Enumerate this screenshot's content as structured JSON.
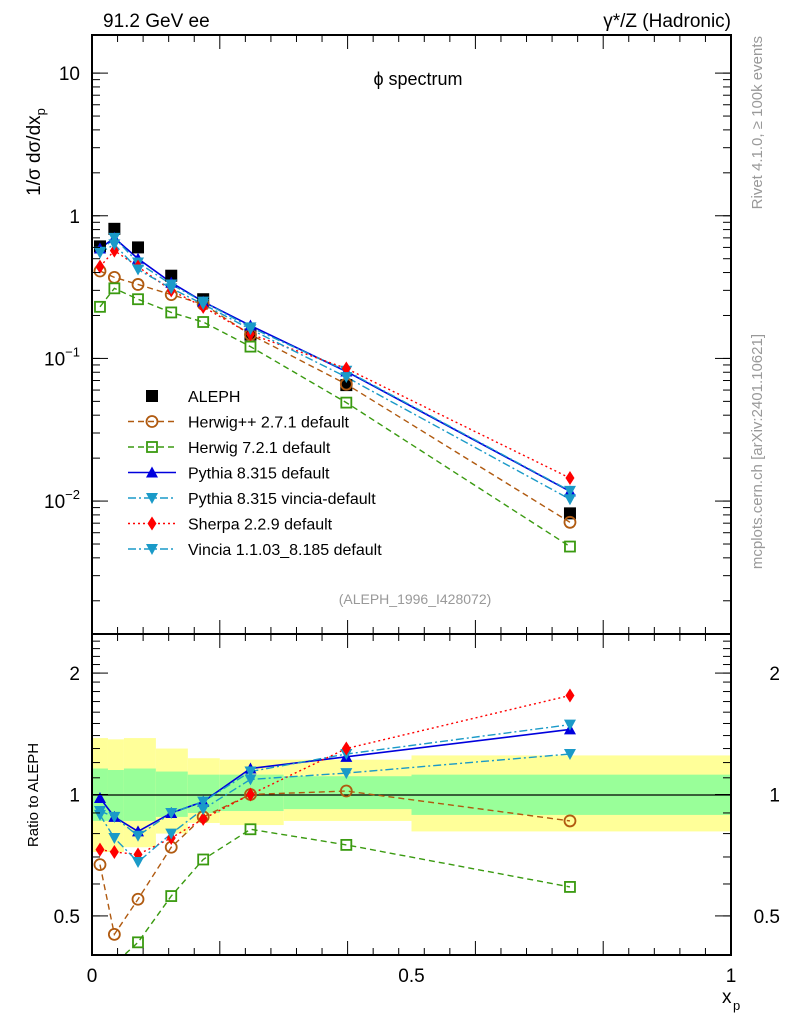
{
  "header": {
    "left": "91.2 GeV ee",
    "right": "γ*/Z (Hadronic)"
  },
  "side_text": {
    "top": "Rivet 4.1.0, ≥ 100k events",
    "bottom": "mcplots.cern.ch [arXiv:2401.10621]"
  },
  "chart_data": [
    {
      "type": "line",
      "panel": "main",
      "title": "ϕ spectrum",
      "annotation": "(ALEPH_1996_I428072)",
      "xlabel": "x_p",
      "ylabel": "1/σ  dσ/dx_p",
      "yscale": "log",
      "xlim": [
        0,
        1
      ],
      "ylim": [
        0.00117,
        18.5
      ],
      "y_ticks": [
        {
          "value": 10,
          "label": "10"
        },
        {
          "value": 1,
          "label": "1"
        },
        {
          "value": 0.1,
          "label": "10^-1"
        },
        {
          "value": 0.01,
          "label": "10^-2"
        }
      ],
      "legend_position": "bottom-left",
      "x": [
        0.0125,
        0.035,
        0.072,
        0.124,
        0.174,
        0.248,
        0.398,
        0.748
      ],
      "series": [
        {
          "name": "ALEPH",
          "color": "#000000",
          "marker": "square-filled",
          "line": "none",
          "values": [
            0.61,
            0.81,
            0.6,
            0.38,
            0.26,
            0.147,
            0.065,
            0.0082
          ]
        },
        {
          "name": "Herwig++ 2.7.1 default",
          "color": "#b05a10",
          "marker": "circle-open",
          "line": "dashed",
          "values": [
            0.41,
            0.37,
            0.33,
            0.28,
            0.24,
            0.147,
            0.066,
            0.0071
          ]
        },
        {
          "name": "Herwig 7.2.1 default",
          "color": "#3a9a10",
          "marker": "square-open",
          "line": "dashed",
          "values": [
            0.23,
            0.31,
            0.26,
            0.21,
            0.18,
            0.121,
            0.049,
            0.0048
          ]
        },
        {
          "name": "Pythia 8.315 default",
          "color": "#0000dd",
          "marker": "triangle-up",
          "line": "solid",
          "values": [
            0.59,
            0.7,
            0.5,
            0.34,
            0.25,
            0.17,
            0.081,
            0.0117
          ]
        },
        {
          "name": "Pythia 8.315 vincia-default",
          "color": "#1a9ac8",
          "marker": "triangle-down",
          "line": "dashdot",
          "values": [
            0.56,
            0.7,
            0.47,
            0.33,
            0.25,
            0.165,
            0.082,
            0.0118
          ]
        },
        {
          "name": "Sherpa 2.2.9 default",
          "color": "#ff0000",
          "marker": "diamond",
          "line": "dotted",
          "values": [
            0.44,
            0.57,
            0.44,
            0.3,
            0.23,
            0.148,
            0.085,
            0.0145
          ]
        },
        {
          "name": "Vincia 1.1.03_8.185 default",
          "color": "#1a9ac8",
          "marker": "triangle-down",
          "line": "dashdot",
          "values": [
            0.55,
            0.63,
            0.42,
            0.31,
            0.24,
            0.16,
            0.074,
            0.0103
          ]
        }
      ]
    },
    {
      "type": "line",
      "panel": "ratio",
      "xlabel": "x_p",
      "ylabel": "Ratio to ALEPH",
      "yscale": "log",
      "xlim": [
        0,
        1
      ],
      "ylim": [
        0.4,
        2.5
      ],
      "x_ticks": [
        {
          "value": 0,
          "label": "0"
        },
        {
          "value": 0.5,
          "label": "0.5"
        },
        {
          "value": 1,
          "label": "1"
        }
      ],
      "y_ticks": [
        {
          "value": 2,
          "label": "2"
        },
        {
          "value": 1,
          "label": "1"
        },
        {
          "value": 0.5,
          "label": "0.5"
        }
      ],
      "bands": {
        "edges": [
          0.0,
          0.025,
          0.05,
          0.1,
          0.15,
          0.2,
          0.3,
          0.5,
          1.0
        ],
        "inner": {
          "color": "#99ff99",
          "lo": [
            0.86,
            0.86,
            0.86,
            0.88,
            0.9,
            0.91,
            0.92,
            0.89
          ],
          "hi": [
            1.16,
            1.15,
            1.16,
            1.14,
            1.12,
            1.12,
            1.11,
            1.12
          ]
        },
        "outer": {
          "color": "#ffff99",
          "lo": [
            0.72,
            0.72,
            0.74,
            0.8,
            0.85,
            0.84,
            0.86,
            0.81
          ],
          "hi": [
            1.38,
            1.37,
            1.38,
            1.3,
            1.23,
            1.22,
            1.22,
            1.25
          ]
        }
      },
      "x": [
        0.0125,
        0.035,
        0.072,
        0.124,
        0.174,
        0.248,
        0.398,
        0.748
      ],
      "series": [
        {
          "name": "Herwig++ 2.7.1 default",
          "values": [
            0.67,
            0.45,
            0.55,
            0.74,
            0.88,
            1.0,
            1.02,
            0.86
          ]
        },
        {
          "name": "Herwig 7.2.1 default",
          "values": [
            0.37,
            0.38,
            0.43,
            0.56,
            0.69,
            0.82,
            0.75,
            0.59
          ]
        },
        {
          "name": "Pythia 8.315 default",
          "values": [
            0.98,
            0.88,
            0.81,
            0.9,
            0.96,
            1.16,
            1.24,
            1.45
          ]
        },
        {
          "name": "Pythia 8.315 vincia-default",
          "values": [
            0.91,
            0.88,
            0.79,
            0.9,
            0.96,
            1.14,
            1.26,
            1.49
          ]
        },
        {
          "name": "Sherpa 2.2.9 default",
          "values": [
            0.73,
            0.72,
            0.71,
            0.78,
            0.87,
            1.0,
            1.3,
            1.76
          ]
        },
        {
          "name": "Vincia 1.1.03_8.185 default",
          "values": [
            0.89,
            0.78,
            0.68,
            0.8,
            0.92,
            1.09,
            1.13,
            1.26
          ]
        }
      ]
    }
  ]
}
